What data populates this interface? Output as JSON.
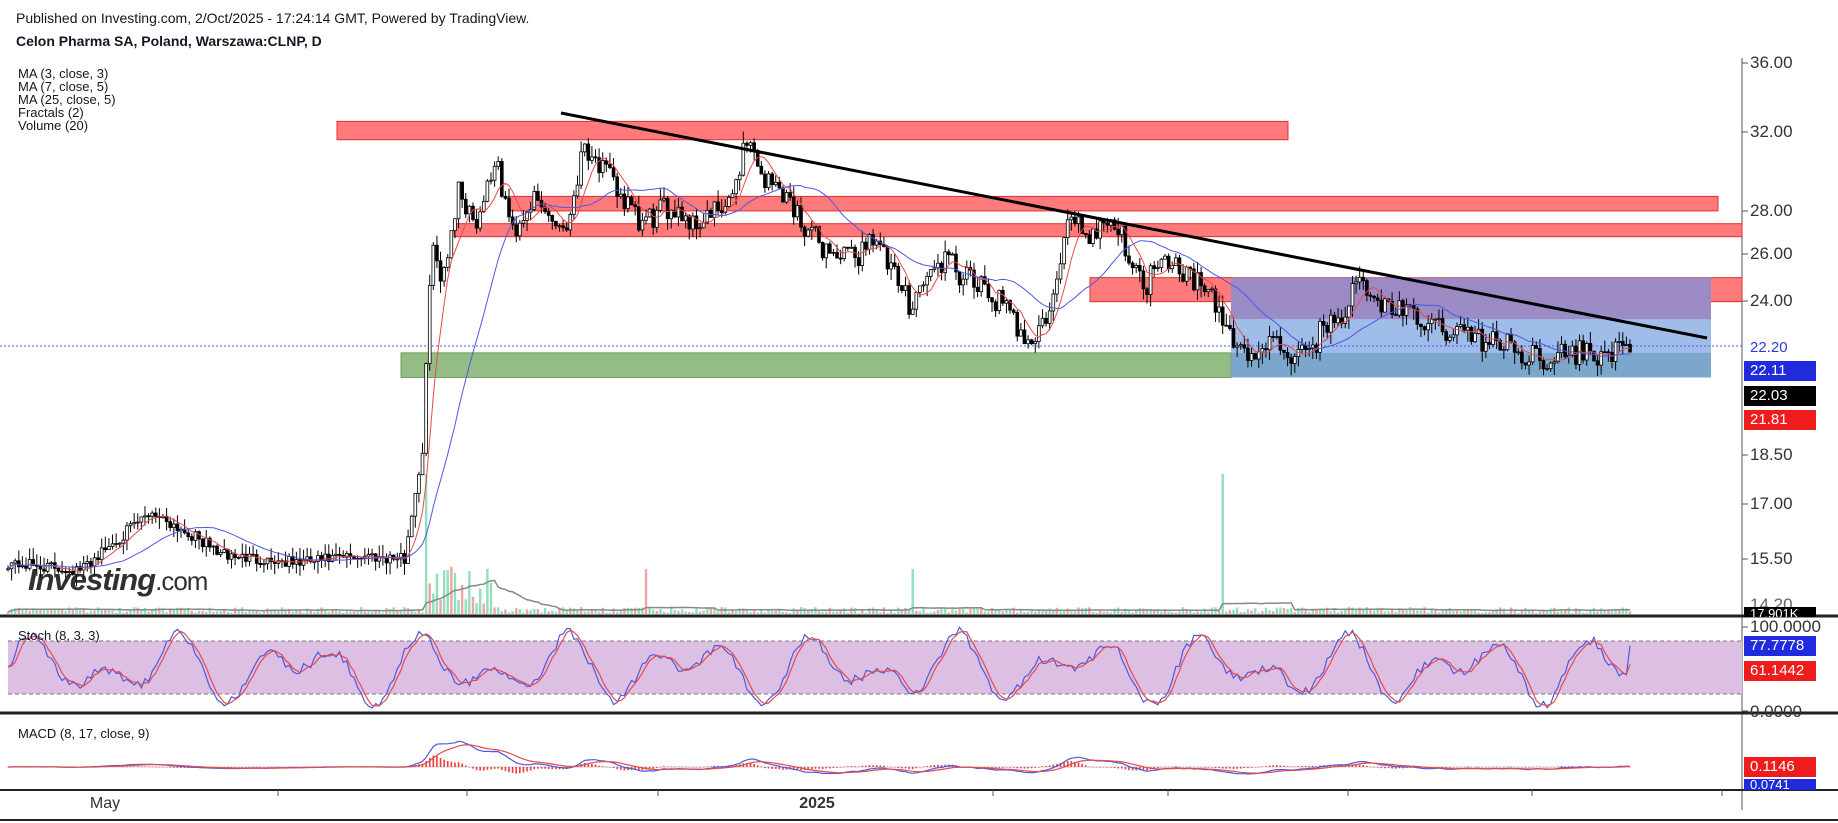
{
  "header": {
    "published": "Published on Investing.com, 2/Oct/2025 - 17:24:14 GMT, Powered by TradingView.",
    "symbol": "Celon Pharma SA, Poland, Warszawa:CLNP, D"
  },
  "indicators": [
    "MA (3, close, 3)",
    "MA (7, close, 5)",
    "MA (25, close, 5)",
    "Fractals (2)",
    "Volume (20)"
  ],
  "logo": {
    "main": "Investing",
    "suffix": ".com"
  },
  "chart_data": {
    "type": "line",
    "title": "Celon Pharma SA, Poland, Warszawa:CLNP, D",
    "y_axis": {
      "ticks": [
        "36.00",
        "32.00",
        "28.00",
        "26.00",
        "24.00",
        "18.50",
        "17.00",
        "15.50",
        "14.20"
      ],
      "scale": "log"
    },
    "x_axis": {
      "ticks": [
        "May",
        "2025"
      ]
    },
    "price_series": {
      "name": "Close (approx.)",
      "x": [
        0,
        20,
        40,
        60,
        80,
        100,
        110,
        115,
        118,
        120,
        125,
        130,
        135,
        140,
        145,
        150,
        155,
        160,
        165,
        170,
        175,
        180,
        185,
        190,
        195,
        200,
        205,
        210,
        215,
        220,
        225,
        230,
        235,
        240,
        245,
        250,
        255,
        260,
        265,
        270,
        275,
        280,
        285,
        290,
        295,
        300,
        305,
        310,
        315,
        320,
        325,
        330,
        335,
        340,
        345,
        350,
        355,
        360,
        365,
        370,
        375,
        380,
        385,
        390,
        395,
        400,
        405,
        410,
        415,
        420,
        425,
        430,
        435,
        440,
        445,
        450
      ],
      "values": [
        15.4,
        15.2,
        16.8,
        15.6,
        15.4,
        15.6,
        15.5,
        18.6,
        27.0,
        24.5,
        29.0,
        27.5,
        30.5,
        27.0,
        28.5,
        27.8,
        27.2,
        31.5,
        30.0,
        28.8,
        27.3,
        27.8,
        28.3,
        27.4,
        27.8,
        28.1,
        31.8,
        29.5,
        29.0,
        27.6,
        26.5,
        26.0,
        25.8,
        27.0,
        25.2,
        24.0,
        25.0,
        25.8,
        25.0,
        24.5,
        24.0,
        23.0,
        22.5,
        24.0,
        28.0,
        26.8,
        27.8,
        26.5,
        24.5,
        26.2,
        25.5,
        24.8,
        23.8,
        22.5,
        21.8,
        22.4,
        22.0,
        21.8,
        23.0,
        23.5,
        24.8,
        23.9,
        23.8,
        23.3,
        23.0,
        22.9,
        22.7,
        22.5,
        22.3,
        22.0,
        21.9,
        21.9,
        22.0,
        22.0,
        22.03,
        22.03
      ]
    },
    "price_labels": {
      "last": "22.20",
      "ma_blue": "22.11",
      "close": "22.03",
      "ma_red": "21.81"
    },
    "volume_label": "17.901K",
    "stochastic": {
      "label": "Stoch (8, 3, 3)",
      "ticks": [
        "100.0000",
        "0.0000"
      ],
      "values": {
        "k": "77.7778",
        "d": "61.1442"
      }
    },
    "macd": {
      "label": "MACD (8, 17, close, 9)",
      "values": {
        "macd": "0.1146",
        "signal": "0.0741"
      }
    },
    "annotations": [
      {
        "type": "zone",
        "color": "resistance",
        "level_low": 31.6,
        "level_high": 32.6
      },
      {
        "type": "zone",
        "color": "resistance",
        "level_low": 28.0,
        "level_high": 28.7
      },
      {
        "type": "zone",
        "color": "resistance",
        "level_low": 26.8,
        "level_high": 27.4
      },
      {
        "type": "zone",
        "color": "resistance",
        "level_low": 24.0,
        "level_high": 25.0
      },
      {
        "type": "zone",
        "color": "support",
        "level_low": 21.1,
        "level_high": 22.0
      },
      {
        "type": "range_box",
        "level_low": 21.1,
        "level_high": 25.0
      },
      {
        "type": "trendline",
        "from": 32.6,
        "to": 22.6
      }
    ]
  },
  "colors": {
    "resistance": "#ff7b7b",
    "support": "#93bd84",
    "box_blue": "#8fb2e6",
    "box_purple": "#9a86c2",
    "ma_red": "#e84a4a",
    "ma_blue": "#4c59e0",
    "stoch_band": "#dcbfe3"
  }
}
